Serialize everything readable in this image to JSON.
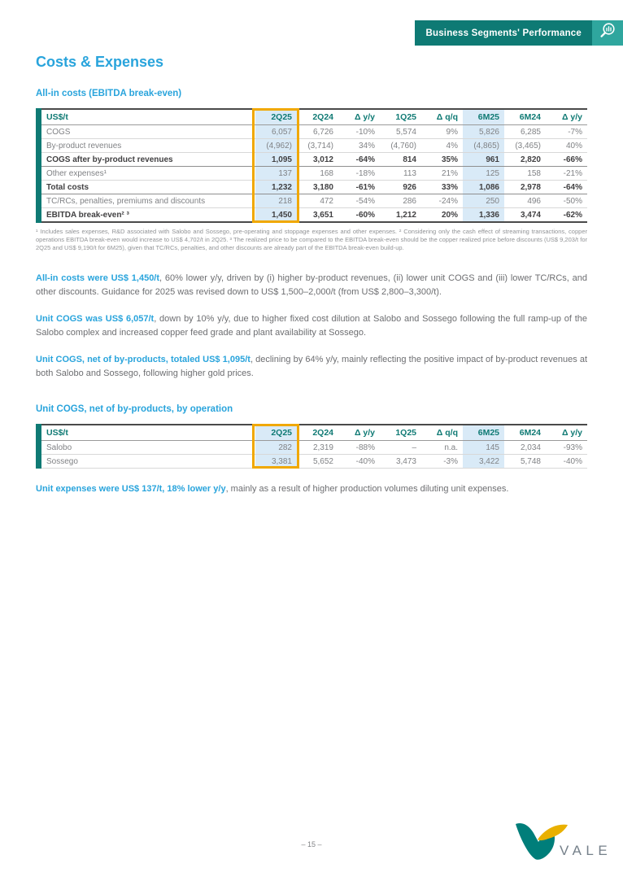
{
  "banner": {
    "label": "Business Segments' Performance",
    "icon": "magnifier-chart-icon"
  },
  "page": {
    "title": "Costs & Expenses",
    "section1_heading": "All-in costs (EBITDA break-even)",
    "section2_heading": "Unit COGS, net of by-products, by operation"
  },
  "table1": {
    "columns": [
      "US$/t",
      "2Q25",
      "2Q24",
      "Δ y/y",
      "1Q25",
      "Δ q/q",
      "6M25",
      "6M24",
      "Δ y/y"
    ],
    "rows": [
      {
        "label": "COGS",
        "bold": false,
        "values": [
          "6,057",
          "6,726",
          "-10%",
          "5,574",
          "9%",
          "5,826",
          "6,285",
          "-7%"
        ]
      },
      {
        "label": "By-product revenues",
        "bold": false,
        "values": [
          "(4,962)",
          "(3,714)",
          "34%",
          "(4,760)",
          "4%",
          "(4,865)",
          "(3,465)",
          "40%"
        ]
      },
      {
        "label": "COGS after by-product revenues",
        "bold": true,
        "values": [
          "1,095",
          "3,012",
          "-64%",
          "814",
          "35%",
          "961",
          "2,820",
          "-66%"
        ]
      },
      {
        "label": "Other expenses¹",
        "bold": false,
        "values": [
          "137",
          "168",
          "-18%",
          "113",
          "21%",
          "125",
          "158",
          "-21%"
        ]
      },
      {
        "label": "Total costs",
        "bold": true,
        "values": [
          "1,232",
          "3,180",
          "-61%",
          "926",
          "33%",
          "1,086",
          "2,978",
          "-64%"
        ]
      },
      {
        "label": "TC/RCs, penalties, premiums and discounts",
        "bold": false,
        "values": [
          "218",
          "472",
          "-54%",
          "286",
          "-24%",
          "250",
          "496",
          "-50%"
        ]
      },
      {
        "label": "EBITDA break-even² ³",
        "bold": true,
        "values": [
          "1,450",
          "3,651",
          "-60%",
          "1,212",
          "20%",
          "1,336",
          "3,474",
          "-62%"
        ]
      }
    ],
    "footnote": "¹ Includes sales expenses, R&D associated with Salobo and Sossego, pre-operating and stoppage expenses and other expenses. ² Considering only the cash effect of streaming transactions, copper operations EBITDA break-even would increase to US$ 4,702/t in 2Q25. ³ The realized price to be compared to the EBITDA break-even should be the copper realized price before discounts (US$ 9,203/t for 2Q25 and US$ 9,190/t for 6M25), given that TC/RCs, penalties, and other discounts are already part of the EBITDA break-even build-up."
  },
  "paragraphs": {
    "p1_lead": "All-in costs were US$ 1,450/t",
    "p1_rest": ", 60% lower y/y, driven by (i) higher by-product revenues, (ii) lower unit COGS and (iii) lower TC/RCs, and other discounts. Guidance for 2025 was revised down to US$ 1,500–2,000/t (from US$ 2,800–3,300/t).",
    "p2_lead": "Unit COGS was US$ 6,057/t",
    "p2_rest": ", down by 10% y/y, due to higher fixed cost dilution at Salobo and Sossego following the full ramp-up of the Salobo complex and increased copper feed grade and plant availability at Sossego.",
    "p3_lead": "Unit COGS, net of by-products, totaled US$ 1,095/t",
    "p3_rest": ", declining by 64% y/y, mainly reflecting the positive impact of by-product revenues at both Salobo and Sossego, following higher gold prices.",
    "p4_lead": "Unit expenses were US$ 137/t, 18% lower y/y",
    "p4_rest": ", mainly as a result of higher production volumes diluting unit expenses."
  },
  "table2": {
    "columns": [
      "US$/t",
      "2Q25",
      "2Q24",
      "Δ y/y",
      "1Q25",
      "Δ q/q",
      "6M25",
      "6M24",
      "Δ y/y"
    ],
    "rows": [
      {
        "label": "Salobo",
        "bold": false,
        "values": [
          "282",
          "2,319",
          "-88%",
          "–",
          "n.a.",
          "145",
          "2,034",
          "-93%"
        ]
      },
      {
        "label": "Sossego",
        "bold": false,
        "values": [
          "3,381",
          "5,652",
          "-40%",
          "3,473",
          "-3%",
          "3,422",
          "5,748",
          "-40%"
        ]
      }
    ]
  },
  "footer": {
    "page_number": "– 15 –",
    "logo_text": "VALE"
  },
  "colors": {
    "heading_cyan": "#29A4DC",
    "teal_dark": "#0F7A74",
    "teal_light": "#2FA69E",
    "highlight_blue": "#D9EAF7",
    "highlight_orange": "#F0A800",
    "logo_green": "#007E7A",
    "logo_yellow": "#E9B000"
  }
}
